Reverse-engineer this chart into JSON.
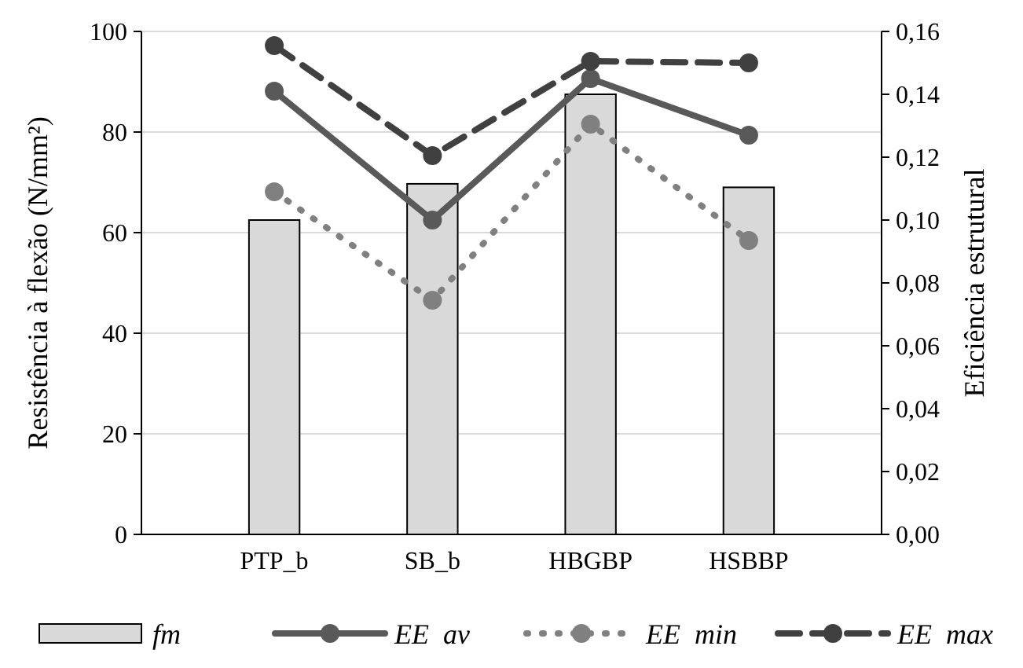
{
  "chart_data": {
    "type": "bar",
    "categories": [
      "PTP_b",
      "SB_b",
      "HBGBP",
      "HSBBP"
    ],
    "ylabel": "Resistência à flexão (N/mm²)",
    "y2label": "Eficiência estrutural",
    "ylim": [
      0,
      100
    ],
    "yticks": [
      0,
      20,
      40,
      60,
      80,
      100
    ],
    "y2lim": [
      0,
      0.16
    ],
    "y2ticks": [
      {
        "value": 0,
        "label": "0,00"
      },
      {
        "value": 0.02,
        "label": "0,02"
      },
      {
        "value": 0.04,
        "label": "0,04"
      },
      {
        "value": 0.06,
        "label": "0,06"
      },
      {
        "value": 0.08,
        "label": "0,08"
      },
      {
        "value": 0.1,
        "label": "0,10"
      },
      {
        "value": 0.12,
        "label": "0,12"
      },
      {
        "value": 0.14,
        "label": "0,14"
      },
      {
        "value": 0.16,
        "label": "0,16"
      }
    ],
    "grid": "y",
    "legend": "bottom",
    "series": [
      {
        "name": "fm",
        "color": "#d9d9d9",
        "values": [
          62.5,
          69.7,
          87.5,
          69
        ]
      },
      {
        "name": "EE  av",
        "type": "line",
        "axis": "y2",
        "color": "#595959",
        "line_style": "solid",
        "marker": "circle",
        "values": [
          0.141,
          0.1,
          0.145,
          0.127
        ]
      },
      {
        "name": "EE  min",
        "type": "line",
        "axis": "y2",
        "color": "#808080",
        "line_style": "dotted",
        "marker": "circle",
        "values": [
          0.109,
          0.0745,
          0.1305,
          0.0935
        ]
      },
      {
        "name": "EE  max",
        "type": "line",
        "axis": "y2",
        "color": "#404040",
        "line_style": "dashed",
        "marker": "circle",
        "values": [
          0.1555,
          0.1205,
          0.1505,
          0.15
        ]
      }
    ]
  }
}
